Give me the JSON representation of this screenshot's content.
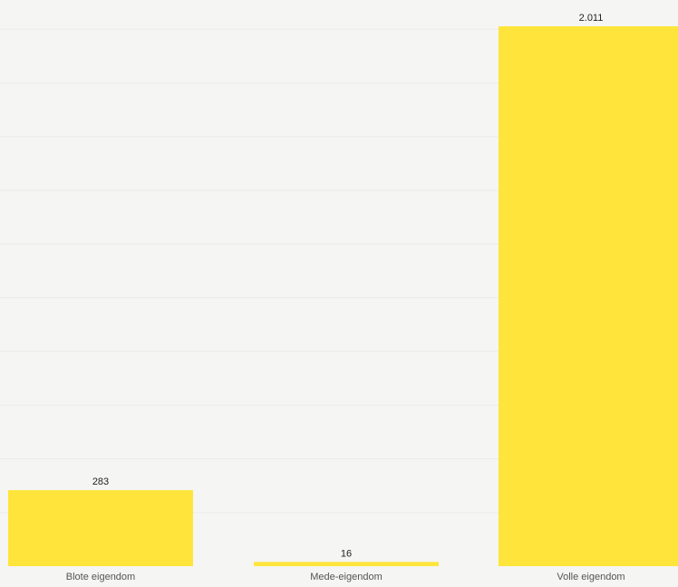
{
  "chart_data": {
    "type": "bar",
    "categories": [
      "Blote eigendom",
      "Mede-eigendom",
      "Volle eigendom"
    ],
    "values": [
      283,
      16,
      2011
    ],
    "value_labels": [
      "283",
      "16",
      "2.011"
    ],
    "ylim": [
      0,
      2100
    ],
    "grid": true,
    "bar_color": "#ffe53b",
    "background_color": "#f5f5f3"
  }
}
